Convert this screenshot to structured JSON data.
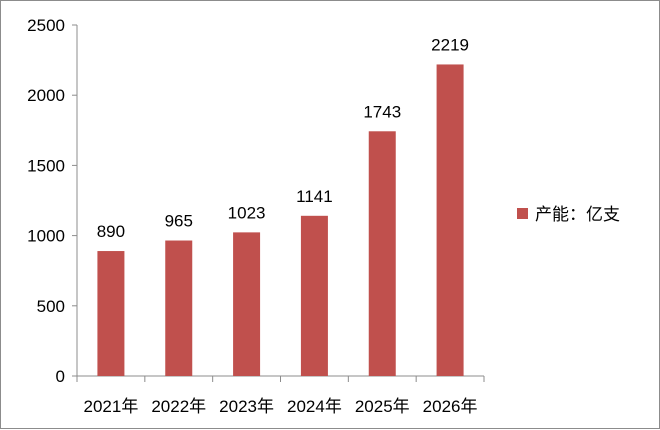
{
  "chart_data": {
    "type": "bar",
    "categories": [
      "2021年",
      "2022年",
      "2023年",
      "2024年",
      "2025年",
      "2026年"
    ],
    "series": [
      {
        "name": "产能：亿支",
        "values": [
          890,
          965,
          1023,
          1141,
          1743,
          2219
        ],
        "color": "#c0504d"
      }
    ],
    "data_labels": [
      "890",
      "965",
      "1023",
      "1141",
      "1743",
      "2219"
    ],
    "y_ticks": [
      "0",
      "500",
      "1000",
      "1500",
      "2000",
      "2500"
    ],
    "ylim": [
      0,
      2500
    ],
    "title": "",
    "xlabel": "",
    "ylabel": "",
    "grid": false,
    "legend_position": "right"
  }
}
